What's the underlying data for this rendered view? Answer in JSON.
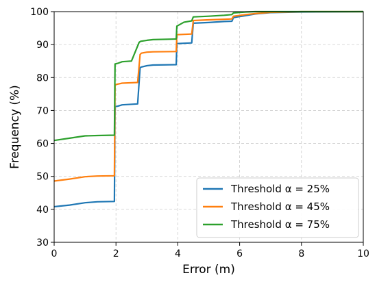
{
  "chart_data": {
    "type": "line",
    "xlabel": "Error (m)",
    "ylabel": "Frequency (%)",
    "xlim": [
      0,
      10
    ],
    "ylim": [
      30,
      100
    ],
    "xticks": [
      0,
      2,
      4,
      6,
      8,
      10
    ],
    "yticks": [
      30,
      40,
      50,
      60,
      70,
      80,
      90,
      100
    ],
    "grid": true,
    "legend_position": "bottom-right",
    "series": [
      {
        "name": "Threshold α = 25%",
        "color": "#1f77b4",
        "x": [
          0,
          0.5,
          1.0,
          1.4,
          1.95,
          1.97,
          2.05,
          2.2,
          2.7,
          2.78,
          2.82,
          3.0,
          3.2,
          3.95,
          3.97,
          4.2,
          4.45,
          4.5,
          5.0,
          5.5,
          5.75,
          5.8,
          6.2,
          6.5,
          7.0,
          8.0,
          10.0
        ],
        "y": [
          40.8,
          41.3,
          42.0,
          42.3,
          42.4,
          71.2,
          71.3,
          71.7,
          72.0,
          83.0,
          83.2,
          83.6,
          83.8,
          83.9,
          90.3,
          90.4,
          90.5,
          96.5,
          96.7,
          97.0,
          97.1,
          98.2,
          98.8,
          99.3,
          99.7,
          99.9,
          100.0
        ]
      },
      {
        "name": "Threshold α = 45%",
        "color": "#ff7f0e",
        "x": [
          0,
          0.5,
          1.0,
          1.4,
          1.95,
          1.97,
          2.05,
          2.2,
          2.7,
          2.78,
          2.82,
          3.0,
          3.2,
          3.95,
          3.97,
          4.2,
          4.45,
          4.5,
          5.0,
          5.5,
          5.75,
          5.8,
          6.2,
          6.5,
          7.0,
          8.0,
          10.0
        ],
        "y": [
          48.6,
          49.2,
          49.9,
          50.1,
          50.2,
          77.8,
          78.0,
          78.3,
          78.5,
          87.0,
          87.4,
          87.7,
          87.8,
          87.9,
          93.0,
          93.1,
          93.2,
          97.3,
          97.5,
          97.7,
          97.8,
          98.6,
          99.1,
          99.4,
          99.8,
          100.0,
          100.0
        ]
      },
      {
        "name": "Threshold α = 75%",
        "color": "#2ca02c",
        "x": [
          0,
          0.5,
          1.0,
          1.4,
          1.95,
          1.97,
          2.05,
          2.2,
          2.5,
          2.75,
          2.8,
          3.0,
          3.2,
          3.95,
          3.97,
          4.2,
          4.45,
          4.5,
          5.0,
          5.5,
          5.75,
          5.8,
          6.2,
          6.5,
          7.0,
          8.0,
          10.0
        ],
        "y": [
          60.9,
          61.6,
          62.3,
          62.4,
          62.5,
          84.1,
          84.3,
          84.8,
          85.0,
          90.7,
          91.0,
          91.3,
          91.5,
          91.7,
          95.6,
          96.8,
          97.2,
          98.4,
          98.6,
          98.9,
          99.1,
          99.6,
          99.9,
          100.0,
          100.0,
          100.0,
          100.0
        ]
      }
    ]
  }
}
